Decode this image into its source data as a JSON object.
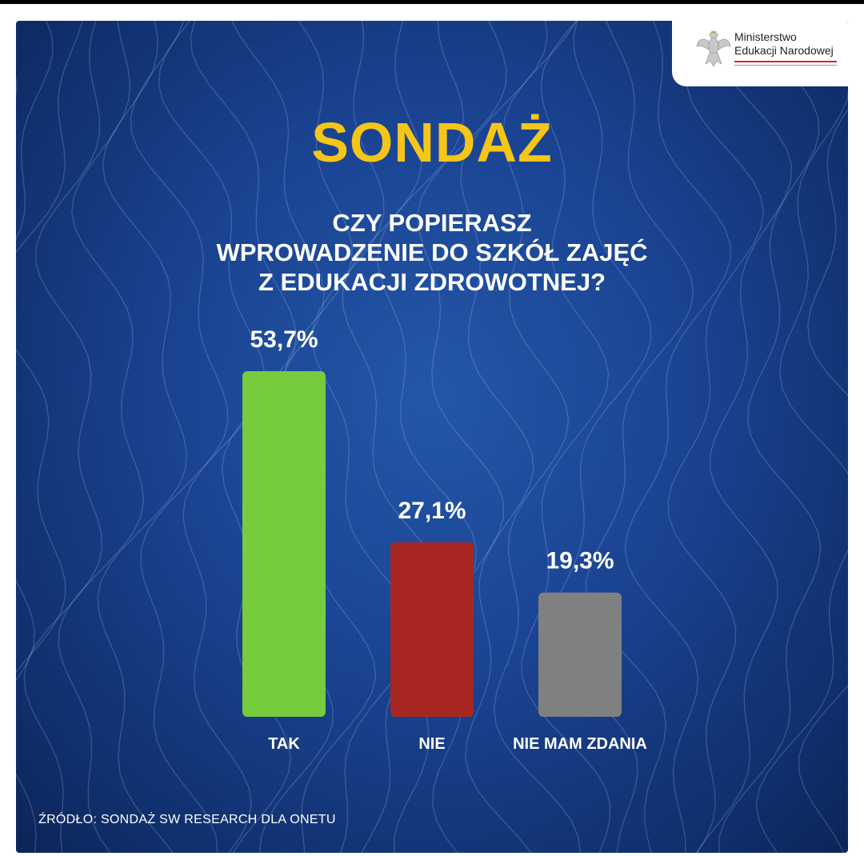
{
  "logo": {
    "line1": "Ministerstwo",
    "line2": "Edukacji Narodowej"
  },
  "title": "SONDAŻ",
  "question_lines": [
    "CZY POPIERASZ",
    "WPROWADZENIE DO SZKÓŁ ZAJĘĆ",
    "Z EDUKACJI ZDROWOTNEJ?"
  ],
  "chart_data": {
    "type": "bar",
    "categories": [
      "TAK",
      "NIE",
      "NIE MAM ZDANIA"
    ],
    "values": [
      53.7,
      27.1,
      19.3
    ],
    "value_labels": [
      "53,7%",
      "27,1%",
      "19,3%"
    ],
    "colors": [
      "#76cc3c",
      "#a82621",
      "#808080"
    ],
    "title": "",
    "xlabel": "",
    "ylabel": "",
    "ylim": [
      0,
      53.7
    ],
    "grid": false
  },
  "source": "ŹRÓDŁO: SONDAŻ SW RESEARCH DLA ONETU",
  "colors": {
    "background": "#1b4594",
    "title": "#f5c518",
    "text": "#ffffff"
  }
}
